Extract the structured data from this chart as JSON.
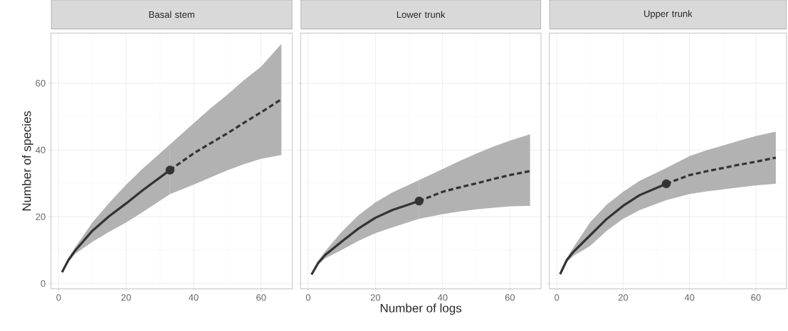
{
  "chart_data": [
    {
      "type": "line",
      "title": "Basal stem",
      "ylabel": "Number of species",
      "xlim": [
        -2.25,
        69.25
      ],
      "ylim": [
        -1.6,
        75
      ],
      "xticks": [
        0,
        20,
        40,
        60
      ],
      "yticks": [
        0,
        20,
        40,
        60
      ],
      "grid": true,
      "series": [
        {
          "type": "line",
          "color": "#333333",
          "line_style": "solid",
          "x": [
            1,
            3,
            5,
            10,
            15,
            20,
            25,
            33
          ],
          "values": [
            3.4,
            7.2,
            10,
            15.8,
            20.2,
            24,
            28,
            34
          ],
          "upper": [
            3.4,
            7.8,
            11,
            18.3,
            24.2,
            29.6,
            34.5,
            41.7
          ],
          "lower": [
            3.4,
            6.6,
            9,
            12.5,
            15.5,
            18.3,
            21.5,
            26.8
          ]
        },
        {
          "type": "line",
          "color": "#333333",
          "line_style": "dashed",
          "x": [
            33,
            40,
            45,
            50,
            55,
            60,
            66
          ],
          "values": [
            34,
            39,
            42,
            45,
            48.2,
            51.3,
            55.2
          ],
          "upper": [
            41.7,
            48,
            52.5,
            56.6,
            61,
            65,
            71.8
          ],
          "lower": [
            26.8,
            29.6,
            31.8,
            33.9,
            35.8,
            37.4,
            38.5
          ]
        },
        {
          "type": "scatter",
          "color": "#333333",
          "marker": "circle",
          "x": [
            33
          ],
          "values": [
            34
          ]
        }
      ]
    },
    {
      "type": "line",
      "title": "Lower trunk",
      "xlabel": "Number of logs",
      "xlim": [
        -2.25,
        69.25
      ],
      "ylim": [
        -1.6,
        75
      ],
      "xticks": [
        0,
        20,
        40,
        60
      ],
      "yticks": [
        0,
        20,
        40,
        60
      ],
      "grid": true,
      "tick_labels": "x",
      "series": [
        {
          "type": "line",
          "color": "#333333",
          "line_style": "solid",
          "x": [
            1,
            3,
            5,
            10,
            15,
            20,
            25,
            33
          ],
          "values": [
            2.7,
            6.2,
            8.5,
            12.6,
            16.5,
            19.7,
            22,
            24.7
          ],
          "upper": [
            2.7,
            6.8,
            9.6,
            15.5,
            20.5,
            24.3,
            27.3,
            31
          ],
          "lower": [
            2.7,
            5.6,
            7.5,
            10.1,
            12.8,
            15.1,
            16.8,
            19.4
          ]
        },
        {
          "type": "line",
          "color": "#333333",
          "line_style": "dashed",
          "x": [
            33,
            40,
            45,
            50,
            55,
            60,
            66
          ],
          "values": [
            24.7,
            27.5,
            28.8,
            30,
            31.3,
            32.5,
            33.7
          ],
          "upper": [
            31,
            34.3,
            36.7,
            38.9,
            41,
            42.8,
            44.7
          ],
          "lower": [
            19.4,
            20.8,
            21.6,
            22.2,
            22.7,
            23.1,
            23.3
          ]
        },
        {
          "type": "scatter",
          "color": "#333333",
          "marker": "circle",
          "x": [
            33
          ],
          "values": [
            24.7
          ]
        }
      ]
    },
    {
      "type": "line",
      "title": "Upper trunk",
      "xlim": [
        -2.25,
        69.25
      ],
      "ylim": [
        -1.6,
        75
      ],
      "xticks": [
        0,
        20,
        40,
        60
      ],
      "yticks": [
        0,
        20,
        40,
        60
      ],
      "grid": true,
      "tick_labels": "x",
      "series": [
        {
          "type": "line",
          "color": "#333333",
          "line_style": "solid",
          "x": [
            1,
            3,
            5,
            10,
            15,
            20,
            25,
            33
          ],
          "values": [
            2.8,
            7,
            9.5,
            14.4,
            19.3,
            23.3,
            26.5,
            29.9
          ],
          "upper": [
            2.8,
            7.6,
            10.8,
            18.3,
            23.6,
            27.5,
            30.8,
            34.6
          ],
          "lower": [
            2.8,
            6.4,
            8.3,
            11.2,
            15.8,
            19.4,
            22,
            25
          ]
        },
        {
          "type": "line",
          "color": "#333333",
          "line_style": "dashed",
          "x": [
            33,
            40,
            45,
            50,
            55,
            60,
            66
          ],
          "values": [
            29.9,
            32.5,
            33.6,
            34.6,
            35.6,
            36.5,
            37.7
          ],
          "upper": [
            34.6,
            38.2,
            39.9,
            41.3,
            42.8,
            44.2,
            45.5
          ],
          "lower": [
            25,
            26.8,
            27.6,
            28.2,
            28.8,
            29.4,
            29.9
          ]
        },
        {
          "type": "scatter",
          "color": "#333333",
          "marker": "circle",
          "x": [
            33
          ],
          "values": [
            29.9
          ]
        }
      ]
    }
  ]
}
